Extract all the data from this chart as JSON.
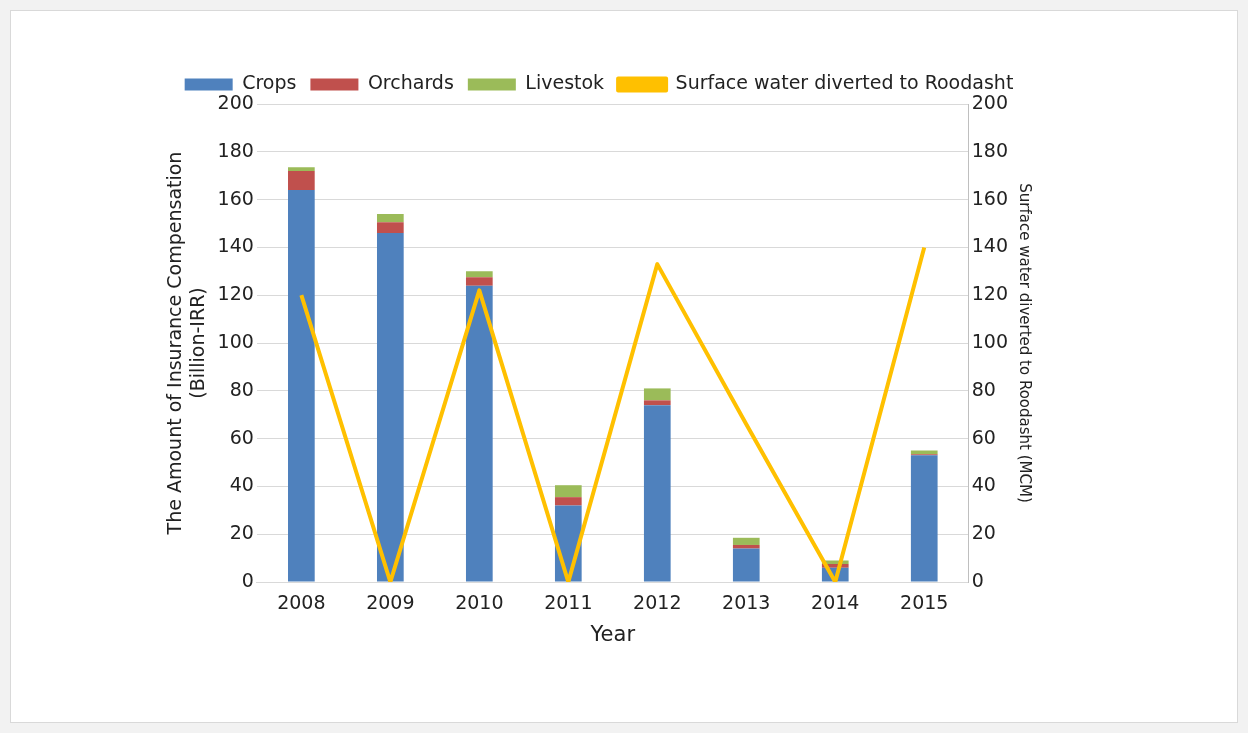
{
  "chart_data": {
    "type": "bar",
    "xlabel": "Year",
    "ylabel": "The Amount of Insurance Compensation (Billion-IRR)",
    "y2label": "Surface water diverted to Roodasht (MCM)",
    "categories": [
      "2008",
      "2009",
      "2010",
      "2011",
      "2012",
      "2013",
      "2014",
      "2015"
    ],
    "stacked": true,
    "series": [
      {
        "name": "Crops",
        "color": "#4f81bd",
        "values": [
          164,
          146,
          124,
          32,
          74,
          14,
          6,
          53
        ]
      },
      {
        "name": "Orchards",
        "color": "#c0504d",
        "values": [
          8,
          4.5,
          3.5,
          3.5,
          2,
          1.5,
          1.5,
          0.5
        ]
      },
      {
        "name": "Livestok",
        "color": "#9bbb59",
        "values": [
          1.5,
          3.5,
          2.5,
          5,
          5,
          3,
          1.5,
          1.5
        ]
      },
      {
        "name": "Surface water diverted to Roodasht",
        "type": "line",
        "axis": "y2",
        "color": "#ffc000",
        "values": [
          120,
          0,
          122,
          0,
          133,
          66,
          0,
          140
        ]
      }
    ],
    "ylim": [
      0,
      200
    ],
    "yticks": [
      0,
      20,
      40,
      60,
      80,
      100,
      120,
      140,
      160,
      180,
      200
    ],
    "y2lim": [
      0,
      200
    ],
    "y2ticks": [
      0,
      20,
      40,
      60,
      80,
      100,
      120,
      140,
      160,
      180,
      200
    ],
    "grid": "y",
    "legend": "top",
    "marker": "none"
  }
}
